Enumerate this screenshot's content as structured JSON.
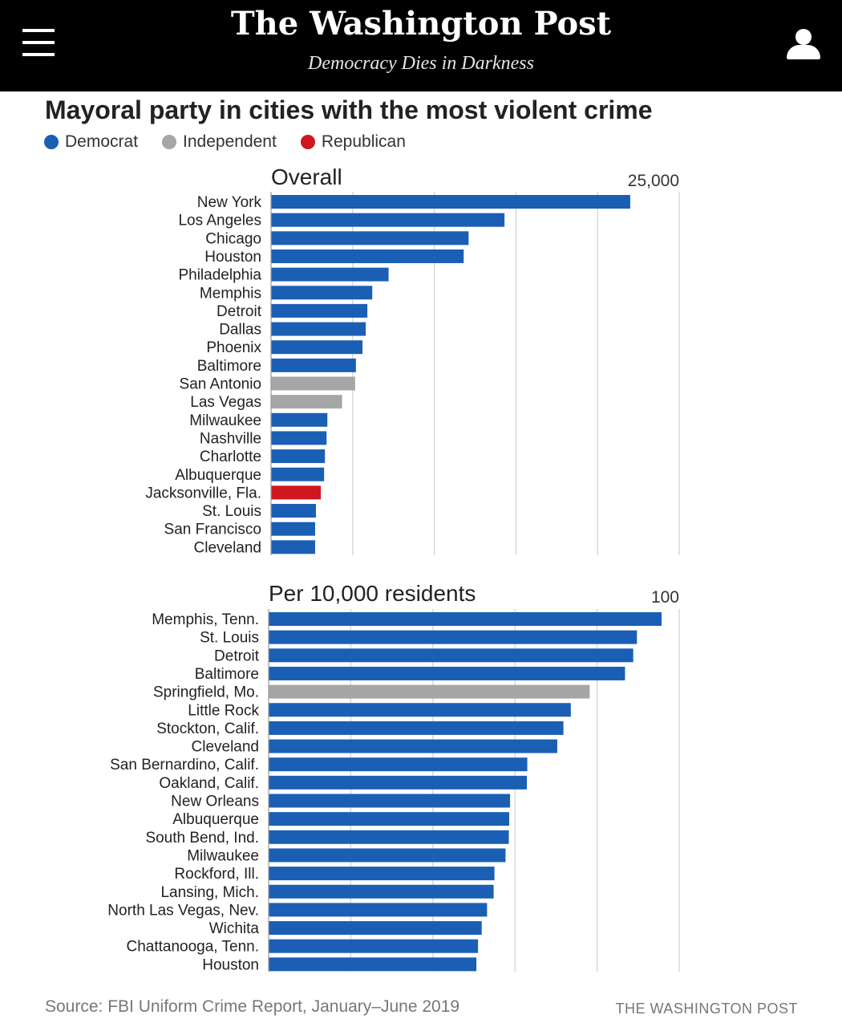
{
  "header": {
    "masthead": "The Washington Post",
    "tagline": "Democracy Dies in Darkness",
    "menu_icon": "hamburger-menu-icon",
    "user_icon": "user-account-icon"
  },
  "title": "Mayoral party in cities with the most violent crime",
  "legend": [
    {
      "label": "Democrat",
      "color": "#1a5fb4"
    },
    {
      "label": "Independent",
      "color": "#a6a6a6"
    },
    {
      "label": "Republican",
      "color": "#d0161f"
    }
  ],
  "colors": {
    "Democrat": "#1a5fb4",
    "Independent": "#a6a6a6",
    "Republican": "#d0161f"
  },
  "chart_data": [
    {
      "type": "bar",
      "orientation": "horizontal",
      "title": "Overall",
      "xlim": [
        0,
        25000
      ],
      "max_label": "25,000",
      "grid": true,
      "categories": [
        "New York",
        "Los Angeles",
        "Chicago",
        "Houston",
        "Philadelphia",
        "Memphis",
        "Detroit",
        "Dallas",
        "Phoenix",
        "Baltimore",
        "San Antonio",
        "Las Vegas",
        "Milwaukee",
        "Nashville",
        "Charlotte",
        "Albuquerque",
        "Jacksonville, Fla.",
        "St. Louis",
        "San Francisco",
        "Cleveland"
      ],
      "values": [
        22000,
        14300,
        12100,
        11800,
        7200,
        6200,
        5900,
        5800,
        5600,
        5200,
        5150,
        4350,
        3450,
        3400,
        3300,
        3250,
        3050,
        2750,
        2700,
        2700
      ],
      "party": [
        "Democrat",
        "Democrat",
        "Democrat",
        "Democrat",
        "Democrat",
        "Democrat",
        "Democrat",
        "Democrat",
        "Democrat",
        "Democrat",
        "Independent",
        "Independent",
        "Democrat",
        "Democrat",
        "Democrat",
        "Democrat",
        "Republican",
        "Democrat",
        "Democrat",
        "Democrat"
      ]
    },
    {
      "type": "bar",
      "orientation": "horizontal",
      "title": "Per 10,000 residents",
      "xlim": [
        0,
        100
      ],
      "max_label": "100",
      "grid": true,
      "categories": [
        "Memphis, Tenn.",
        "St. Louis",
        "Detroit",
        "Baltimore",
        "Springfield, Mo.",
        "Little Rock",
        "Stockton, Calif.",
        "Cleveland",
        "San Bernardino, Calif.",
        "Oakland, Calif.",
        "New Orleans",
        "Albuquerque",
        "South Bend, Ind.",
        "Milwaukee",
        "Rockford, Ill.",
        "Lansing, Mich.",
        "North Las Vegas, Nev.",
        "Wichita",
        "Chattanooga, Tenn.",
        "Houston"
      ],
      "values": [
        95.7,
        89.7,
        88.8,
        86.8,
        78.2,
        73.6,
        71.8,
        70.3,
        63.0,
        62.9,
        58.8,
        58.6,
        58.5,
        57.7,
        55.0,
        54.8,
        53.2,
        51.9,
        51.0,
        50.6
      ],
      "party": [
        "Democrat",
        "Democrat",
        "Democrat",
        "Democrat",
        "Independent",
        "Democrat",
        "Democrat",
        "Democrat",
        "Democrat",
        "Democrat",
        "Democrat",
        "Democrat",
        "Democrat",
        "Democrat",
        "Democrat",
        "Democrat",
        "Democrat",
        "Democrat",
        "Democrat",
        "Democrat"
      ]
    }
  ],
  "footer": {
    "source": "Source: FBI Uniform Crime Report, January–June 2019",
    "credit": "THE WASHINGTON POST"
  }
}
